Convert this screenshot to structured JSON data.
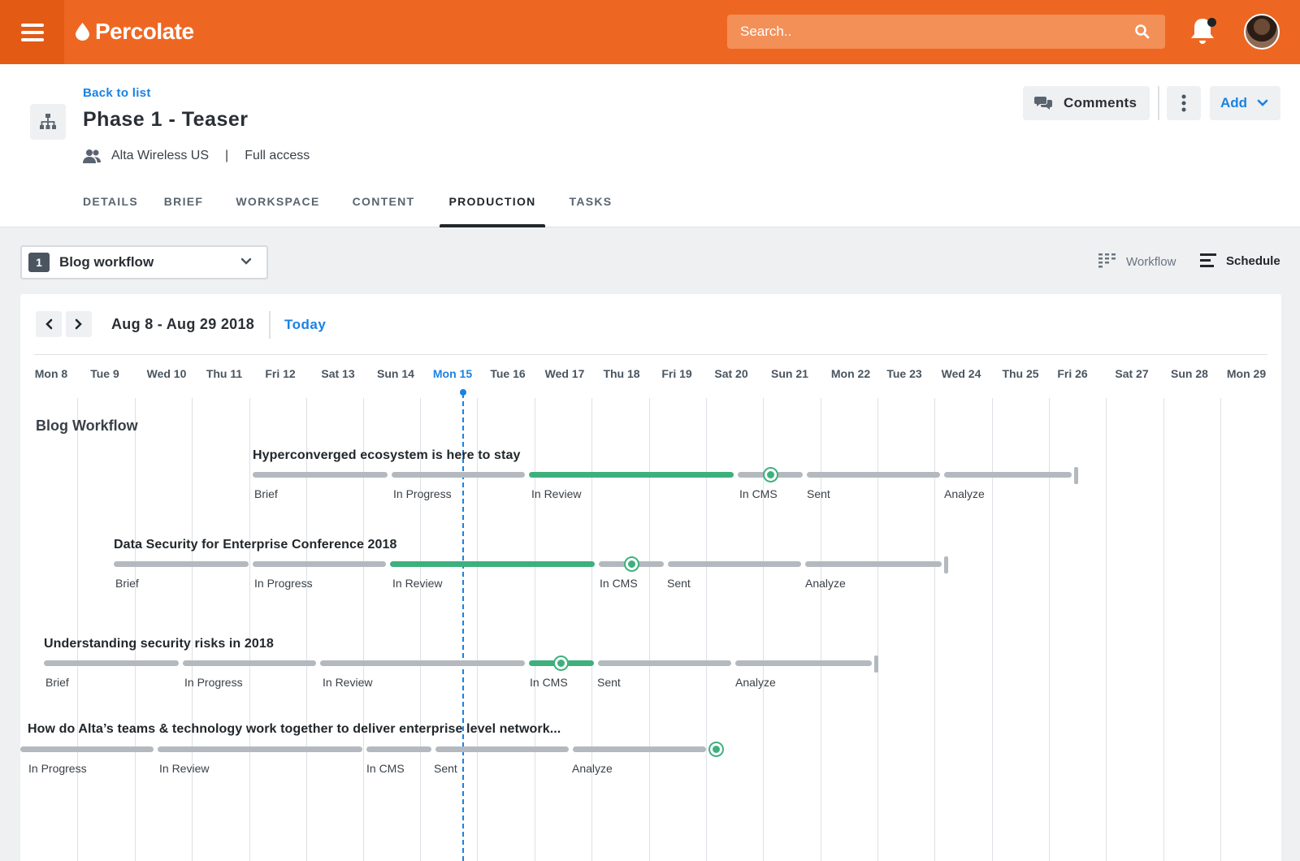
{
  "app": {
    "brand": "Percolate",
    "search_placeholder": "Search..",
    "accent_color": "#ee6722",
    "link_color": "#1a82e2",
    "progress_color": "#3eb07d"
  },
  "header": {
    "back_label": "Back to list",
    "title": "Phase 1 - Teaser",
    "team": "Alta Wireless US",
    "separator": "|",
    "access": "Full access",
    "comments_label": "Comments",
    "add_label": "Add"
  },
  "tabs": [
    {
      "label": "DETAILS"
    },
    {
      "label": "BRIEF"
    },
    {
      "label": "WORKSPACE"
    },
    {
      "label": "CONTENT"
    },
    {
      "label": "PRODUCTION",
      "active": true
    },
    {
      "label": "TASKS"
    }
  ],
  "toolbar": {
    "workflow_number": "1",
    "workflow_name": "Blog workflow",
    "view_workflow": "Workflow",
    "view_schedule": "Schedule"
  },
  "timeline": {
    "range": "Aug 8 - Aug 29 2018",
    "today_label": "Today",
    "days": [
      "Mon 8",
      "Tue 9",
      "Wed 10",
      "Thu 11",
      "Fri 12",
      "Sat 13",
      "Sun 14",
      "Mon 15",
      "Tue 16",
      "Wed 17",
      "Thu 18",
      "Fri 19",
      "Sat 20",
      "Sun 21",
      "Mon 22",
      "Tue 23",
      "Wed 24",
      "Thu 25",
      "Fri 26",
      "Sat 27",
      "Sun 28",
      "Mon 29"
    ],
    "today_index": 7,
    "group_title": "Blog Workflow",
    "items": [
      {
        "title": "Hyperconverged ecosystem is here to stay",
        "stages": [
          "Brief",
          "In Progress",
          "In Review",
          "In CMS",
          "Sent",
          "Analyze"
        ]
      },
      {
        "title": "Data Security for Enterprise Conference 2018",
        "stages": [
          "Brief",
          "In Progress",
          "In Review",
          "In CMS",
          "Sent",
          "Analyze"
        ]
      },
      {
        "title": "Understanding security risks  in 2018",
        "stages": [
          "Brief",
          "In Progress",
          "In Review",
          "In CMS",
          "Sent",
          "Analyze"
        ]
      },
      {
        "title": "How do Alta’s teams & technology work together to deliver enterprise level network...",
        "stages": [
          "In Progress",
          "In Review",
          "In CMS",
          "Sent",
          "Analyze"
        ]
      }
    ]
  },
  "icons": [
    "menu-icon",
    "drop-icon",
    "search-icon",
    "bell-icon",
    "org-chart-icon",
    "team-icon",
    "chat-icon",
    "kebab-icon",
    "chevron-down-icon",
    "chevron-left-icon",
    "chevron-right-icon",
    "workflow-view-icon",
    "schedule-view-icon"
  ]
}
